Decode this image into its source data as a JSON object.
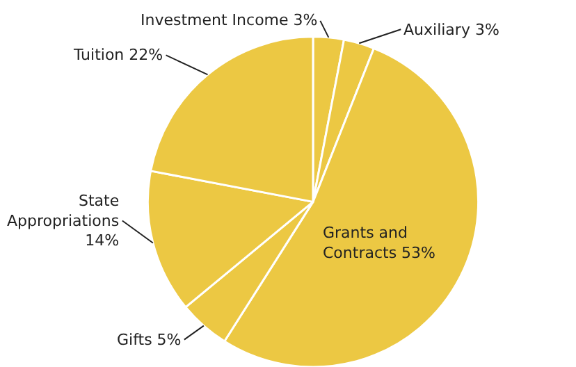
{
  "chart_data": {
    "type": "pie",
    "categories": [
      "Investment Income",
      "Auxiliary",
      "Grants and Contracts",
      "Gifts",
      "State Appropriations",
      "Tuition"
    ],
    "values": [
      3,
      3,
      53,
      5,
      14,
      22
    ],
    "value_labels": [
      "3%",
      "3%",
      "53%",
      "5%",
      "14%",
      "22%"
    ],
    "colors": [
      "#ecc843",
      "#ecc843",
      "#ecc843",
      "#ecc843",
      "#ecc843",
      "#ecc843"
    ],
    "legend": false
  }
}
